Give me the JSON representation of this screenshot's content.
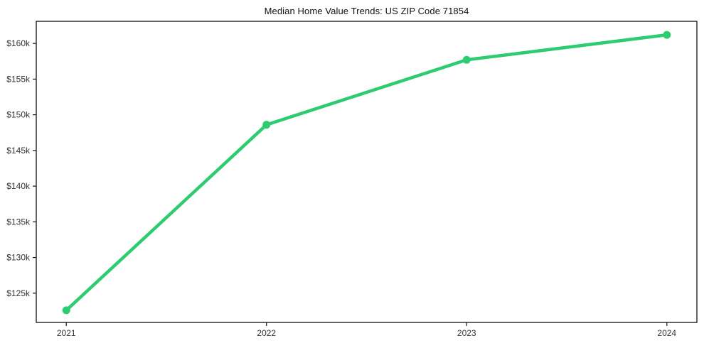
{
  "chart_data": {
    "type": "line",
    "title": "Median Home Value Trends: US ZIP Code 71854",
    "categories": [
      "2021",
      "2022",
      "2023",
      "2024"
    ],
    "series": [
      {
        "name": "Median Home Value",
        "values": [
          122600,
          148600,
          157700,
          161200
        ]
      }
    ],
    "ytick_values": [
      125000,
      130000,
      135000,
      140000,
      145000,
      150000,
      155000,
      160000
    ],
    "ytick_labels": [
      "$125k",
      "$130k",
      "$135k",
      "$140k",
      "$145k",
      "$150k",
      "$155k",
      "$160k"
    ],
    "ylim": [
      120900,
      163100
    ],
    "xlim": [
      -0.15,
      3.15
    ],
    "grid": false,
    "legend": "none",
    "line_color": "#2ecc71",
    "marker": "circle",
    "axis_color": "#111111",
    "tick_label_color": "#333333",
    "background": "#ffffff"
  }
}
